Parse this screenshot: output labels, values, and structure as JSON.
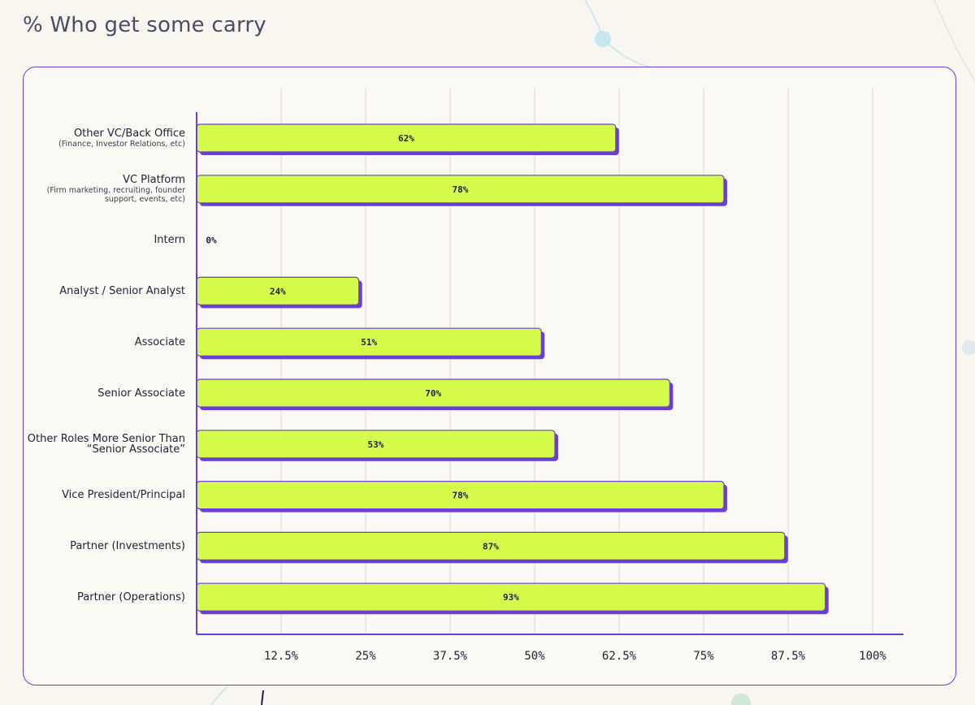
{
  "title": "% Who get some carry",
  "colors": {
    "bar_fill": "#d5fc4b",
    "bar_shadow": "#6b3fd6",
    "axis": "#6b3fd6",
    "grid": "#dcd9cf",
    "text": "#22233a"
  },
  "chart_data": {
    "type": "bar",
    "orientation": "horizontal",
    "title": "% Who get some carry",
    "xlabel": "",
    "ylabel": "",
    "xlim": [
      0,
      105
    ],
    "ticks": [
      12.5,
      25,
      37.5,
      50,
      62.5,
      75,
      87.5,
      100
    ],
    "tick_labels": [
      "12.5%",
      "25%",
      "37.5%",
      "50%",
      "62.5%",
      "75%",
      "87.5%",
      "100%"
    ],
    "grid": true,
    "categories": [
      {
        "label": "Other VC/Back Office",
        "sub": "(Finance, Investor Relations, etc)"
      },
      {
        "label": "VC Platform",
        "sub": "(Firm marketing, recruiting, founder support, events, etc)"
      },
      {
        "label": "Intern",
        "sub": ""
      },
      {
        "label": "Analyst / Senior Analyst",
        "sub": ""
      },
      {
        "label": "Associate",
        "sub": ""
      },
      {
        "label": "Senior Associate",
        "sub": ""
      },
      {
        "label": "Other Roles More Senior Than “Senior Associate”",
        "sub": ""
      },
      {
        "label": "Vice President/Principal",
        "sub": ""
      },
      {
        "label": "Partner (Investments)",
        "sub": ""
      },
      {
        "label": "Partner (Operations)",
        "sub": ""
      }
    ],
    "values": [
      62,
      78,
      0,
      24,
      51,
      70,
      53,
      78,
      87,
      93
    ],
    "value_labels": [
      "62%",
      "78%",
      "0%",
      "24%",
      "51%",
      "70%",
      "53%",
      "78%",
      "87%",
      "93%"
    ]
  }
}
